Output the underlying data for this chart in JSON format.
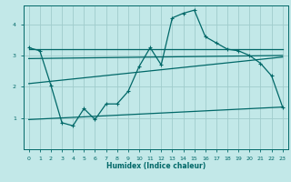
{
  "title": "",
  "xlabel": "Humidex (Indice chaleur)",
  "bg_color": "#c2e8e8",
  "grid_color": "#a0cccc",
  "line_color": "#006868",
  "xlim": [
    -0.5,
    23.5
  ],
  "ylim": [
    0,
    4.6
  ],
  "yticks": [
    1,
    2,
    3,
    4
  ],
  "xticks": [
    0,
    1,
    2,
    3,
    4,
    5,
    6,
    7,
    8,
    9,
    10,
    11,
    12,
    13,
    14,
    15,
    16,
    17,
    18,
    19,
    20,
    21,
    22,
    23
  ],
  "curve1_x": [
    0,
    1,
    2,
    3,
    4,
    5,
    6,
    7,
    8,
    9,
    10,
    11,
    12,
    13,
    14,
    15,
    16,
    17,
    18,
    19,
    20,
    21,
    22,
    23
  ],
  "curve1_y": [
    3.25,
    3.15,
    2.05,
    0.85,
    0.75,
    1.3,
    0.95,
    1.45,
    1.45,
    1.85,
    2.65,
    3.25,
    2.7,
    4.2,
    4.35,
    4.45,
    3.6,
    3.4,
    3.2,
    3.15,
    3.0,
    2.75,
    2.35,
    1.35
  ],
  "curve2_x": [
    0,
    23
  ],
  "curve2_y": [
    3.2,
    3.2
  ],
  "curve3_x": [
    0,
    23
  ],
  "curve3_y": [
    2.9,
    3.0
  ],
  "curve4_x": [
    0,
    23
  ],
  "curve4_y": [
    2.1,
    2.95
  ],
  "curve5_x": [
    0,
    23
  ],
  "curve5_y": [
    0.95,
    1.35
  ]
}
